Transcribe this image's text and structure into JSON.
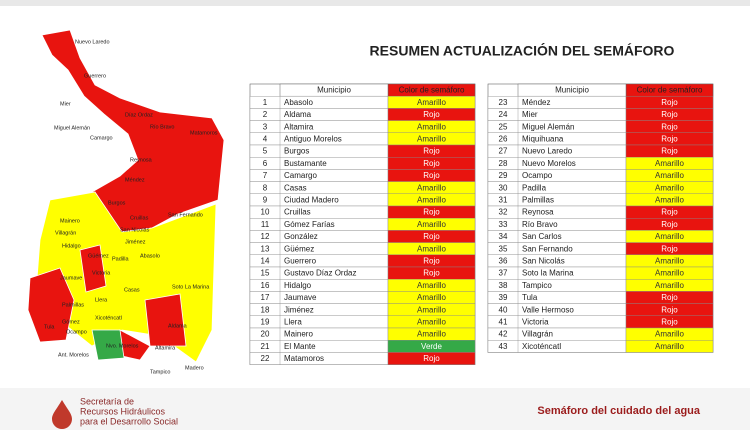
{
  "title": "RESUMEN ACTUALIZACIÓN DEL SEMÁFORO",
  "status_colors": {
    "Rojo": "#e8140f",
    "Amarillo": "#ffff00",
    "Verde": "#35a947"
  },
  "map_labels": [
    "Nuevo Laredo",
    "Guerrero",
    "Mier",
    "Díaz Ordaz",
    "Miguel Alemán",
    "Camargo",
    "Río Bravo",
    "Matamoros",
    "Reynosa",
    "Méndez",
    "Burgos",
    "San Fernando",
    "Cruillas",
    "Mainero",
    "Villagrán",
    "San Nicolás",
    "Hidalgo",
    "Jiménez",
    "Güémez",
    "Padilla",
    "Abasolo",
    "Victoria",
    "Jaumave",
    "Casas",
    "Soto La Marina",
    "Palmillas",
    "Llera",
    "Xicoténcatl",
    "Gómez",
    "Ocampo",
    "Tula",
    "Aldama",
    "Altamira",
    "Ant. Morelos",
    "Nvo. Morelos",
    "Madero",
    "Tampico"
  ],
  "tables": [
    {
      "headers": [
        "Municipio",
        "Color de semáforo"
      ],
      "rows": [
        [
          1,
          "Abasolo",
          "Amarillo"
        ],
        [
          2,
          "Aldama",
          "Rojo"
        ],
        [
          3,
          "Altamira",
          "Amarillo"
        ],
        [
          4,
          "Antiguo Morelos",
          "Amarillo"
        ],
        [
          5,
          "Burgos",
          "Rojo"
        ],
        [
          6,
          "Bustamante",
          "Rojo"
        ],
        [
          7,
          "Camargo",
          "Rojo"
        ],
        [
          8,
          "Casas",
          "Amarillo"
        ],
        [
          9,
          "Ciudad Madero",
          "Amarillo"
        ],
        [
          10,
          "Cruillas",
          "Rojo"
        ],
        [
          11,
          "Gómez Farías",
          "Amarillo"
        ],
        [
          12,
          "González",
          "Rojo"
        ],
        [
          13,
          "Güémez",
          "Amarillo"
        ],
        [
          14,
          "Guerrero",
          "Rojo"
        ],
        [
          15,
          "Gustavo Díaz Ordaz",
          "Rojo"
        ],
        [
          16,
          "Hidalgo",
          "Amarillo"
        ],
        [
          17,
          "Jaumave",
          "Amarillo"
        ],
        [
          18,
          "Jiménez",
          "Amarillo"
        ],
        [
          19,
          "Llera",
          "Amarillo"
        ],
        [
          20,
          "Mainero",
          "Amarillo"
        ],
        [
          21,
          "El Mante",
          "Verde"
        ],
        [
          22,
          "Matamoros",
          "Rojo"
        ]
      ]
    },
    {
      "headers": [
        "Municipio",
        "Color de semáforo"
      ],
      "rows": [
        [
          23,
          "Méndez",
          "Rojo"
        ],
        [
          24,
          "Mier",
          "Rojo"
        ],
        [
          25,
          "Miguel Alemán",
          "Rojo"
        ],
        [
          26,
          "Miquihuana",
          "Rojo"
        ],
        [
          27,
          "Nuevo Laredo",
          "Rojo"
        ],
        [
          28,
          "Nuevo Morelos",
          "Amarillo"
        ],
        [
          29,
          "Ocampo",
          "Amarillo"
        ],
        [
          30,
          "Padilla",
          "Amarillo"
        ],
        [
          31,
          "Palmillas",
          "Amarillo"
        ],
        [
          32,
          "Reynosa",
          "Rojo"
        ],
        [
          33,
          "Río Bravo",
          "Rojo"
        ],
        [
          34,
          "San Carlos",
          "Amarillo"
        ],
        [
          35,
          "San Fernando",
          "Rojo"
        ],
        [
          36,
          "San Nicolás",
          "Amarillo"
        ],
        [
          37,
          "Soto la Marina",
          "Amarillo"
        ],
        [
          38,
          "Tampico",
          "Amarillo"
        ],
        [
          39,
          "Tula",
          "Rojo"
        ],
        [
          40,
          "Valle Hermoso",
          "Rojo"
        ],
        [
          41,
          "Victoria",
          "Rojo"
        ],
        [
          42,
          "Villagrán",
          "Amarillo"
        ],
        [
          43,
          "Xicoténcatl",
          "Amarillo"
        ]
      ]
    }
  ],
  "footer": {
    "org_lines": [
      "Secretaría de",
      "Recursos Hidráulicos",
      "para el Desarrollo Social"
    ],
    "tagline": "Semáforo del cuidado del agua"
  }
}
